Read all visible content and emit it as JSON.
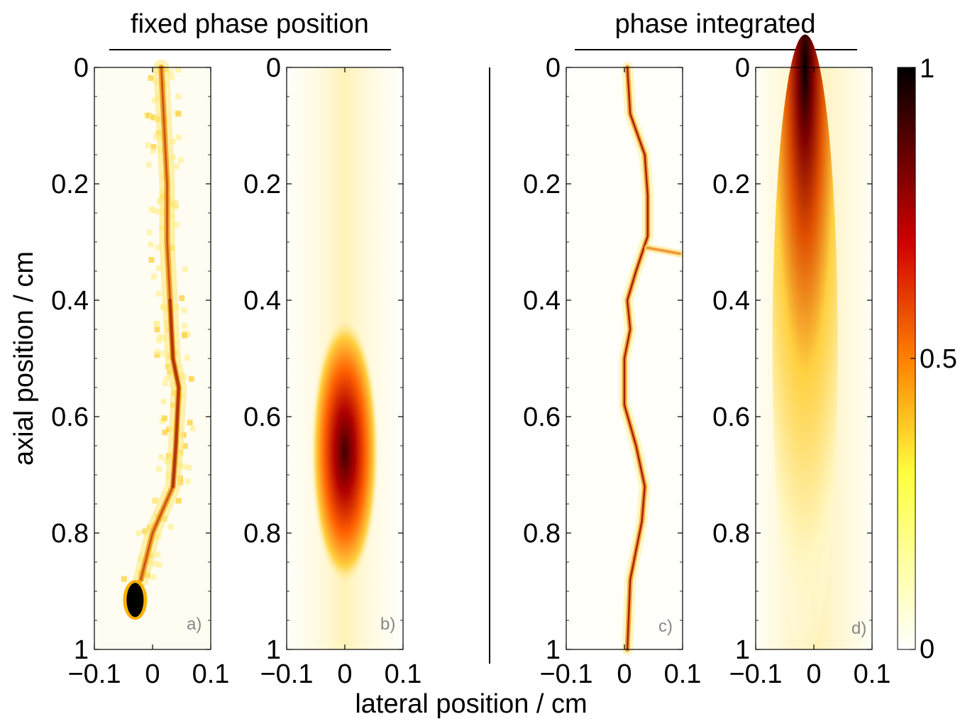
{
  "chart_data": {
    "type": "heatmap",
    "xlabel": "lateral position / cm",
    "ylabel": "axial position / cm",
    "xlim": [
      -0.1,
      0.1
    ],
    "ylim": [
      1,
      0
    ],
    "x_ticks": [
      "−0.1",
      "0",
      "0.1"
    ],
    "y_ticks": [
      "0",
      "0.2",
      "0.4",
      "0.6",
      "0.8",
      "1"
    ],
    "colormap": "hot (white → yellow → red → black)",
    "colors": {
      "low": "#ffffff",
      "mid_low": "#ffff40",
      "mid": "#ff8000",
      "mid_high": "#d00000",
      "high": "#000000"
    },
    "groups": [
      {
        "title": "fixed phase position",
        "panels": [
          "a)",
          "b)"
        ]
      },
      {
        "title": "phase integrated",
        "panels": [
          "c)",
          "d)"
        ]
      }
    ],
    "colorbar": {
      "range": [
        0,
        1
      ],
      "ticks": [
        "0",
        "0.5",
        "1"
      ]
    },
    "panels": [
      {
        "tag": "a)",
        "description_pattern": "filament",
        "path": [
          [
            0.015,
            0.0
          ],
          [
            0.02,
            0.1
          ],
          [
            0.025,
            0.2
          ],
          [
            0.025,
            0.3
          ],
          [
            0.03,
            0.4
          ],
          [
            0.035,
            0.5
          ],
          [
            0.045,
            0.55
          ],
          [
            0.04,
            0.65
          ],
          [
            0.035,
            0.72
          ],
          [
            0.0,
            0.8
          ],
          [
            -0.02,
            0.88
          ]
        ],
        "hotspot": {
          "x": -0.03,
          "y": 0.915,
          "value": 1.0
        }
      },
      {
        "tag": "b)",
        "description_pattern": "blob",
        "center": {
          "x": 0.0,
          "y": 0.66
        },
        "peak_value": 0.95
      },
      {
        "tag": "c)",
        "description_pattern": "filament",
        "path": [
          [
            0.005,
            0.0
          ],
          [
            0.01,
            0.08
          ],
          [
            0.035,
            0.15
          ],
          [
            0.04,
            0.22
          ],
          [
            0.04,
            0.29
          ],
          [
            0.02,
            0.35
          ],
          [
            0.005,
            0.4
          ],
          [
            0.01,
            0.45
          ],
          [
            0.0,
            0.5
          ],
          [
            0.0,
            0.58
          ],
          [
            0.02,
            0.65
          ],
          [
            0.035,
            0.72
          ],
          [
            0.03,
            0.78
          ],
          [
            0.01,
            0.88
          ],
          [
            0.005,
            1.0
          ]
        ],
        "branch": [
          [
            0.04,
            0.31
          ],
          [
            0.095,
            0.32
          ]
        ]
      },
      {
        "tag": "d)",
        "description_pattern": "column",
        "peak": {
          "x": -0.015,
          "y": 0.06,
          "value": 1.0
        }
      }
    ]
  }
}
